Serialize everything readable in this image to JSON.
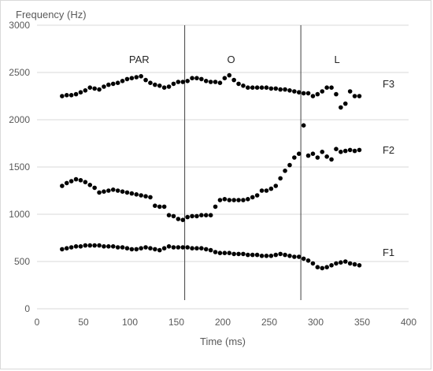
{
  "chart_data": {
    "type": "scatter",
    "xlabel": "Time (ms)",
    "ylabel": "Frequency (Hz)",
    "xlim": [
      0,
      400
    ],
    "ylim": [
      0,
      3000
    ],
    "x_ticks": [
      0,
      50,
      100,
      150,
      200,
      250,
      300,
      350,
      400
    ],
    "y_ticks": [
      0,
      500,
      1000,
      1500,
      2000,
      2500,
      3000
    ],
    "grid": "horizontal",
    "marker_color": "#000000",
    "gridline_color": "#d9d9d9",
    "boundaries": [
      159,
      284
    ],
    "segments": [
      {
        "label": "PAR",
        "x": 110
      },
      {
        "label": "O",
        "x": 209
      },
      {
        "label": "L",
        "x": 323
      }
    ],
    "series": [
      {
        "name": "F3",
        "label_pos": {
          "x": 372,
          "y": 2340
        },
        "x": [
          27,
          32,
          37,
          42,
          47,
          52,
          57,
          62,
          67,
          72,
          77,
          82,
          87,
          92,
          97,
          102,
          107,
          112,
          117,
          122,
          127,
          132,
          137,
          142,
          147,
          152,
          157,
          162,
          167,
          172,
          177,
          182,
          187,
          192,
          197,
          202,
          207,
          212,
          217,
          222,
          227,
          232,
          237,
          242,
          247,
          252,
          257,
          262,
          267,
          272,
          277,
          282,
          287,
          292,
          297,
          302,
          307,
          312,
          317,
          322,
          327,
          332,
          337,
          342,
          347
        ],
        "y": [
          2250,
          2260,
          2260,
          2270,
          2290,
          2310,
          2340,
          2330,
          2320,
          2350,
          2370,
          2380,
          2390,
          2410,
          2430,
          2440,
          2450,
          2460,
          2420,
          2390,
          2370,
          2360,
          2340,
          2350,
          2380,
          2400,
          2400,
          2410,
          2440,
          2440,
          2430,
          2410,
          2400,
          2400,
          2390,
          2440,
          2470,
          2420,
          2380,
          2360,
          2340,
          2340,
          2340,
          2340,
          2340,
          2330,
          2330,
          2320,
          2320,
          2310,
          2300,
          2290,
          2280,
          2280,
          2250,
          2270,
          2300,
          2340,
          2340,
          2270,
          2130,
          2170,
          2300,
          2250,
          2250
        ]
      },
      {
        "name": "F2",
        "label_pos": {
          "x": 372,
          "y": 1640
        },
        "x": [
          27,
          32,
          37,
          42,
          47,
          52,
          57,
          62,
          67,
          72,
          77,
          82,
          87,
          92,
          97,
          102,
          107,
          112,
          117,
          122,
          127,
          132,
          137,
          142,
          147,
          152,
          157,
          162,
          167,
          172,
          177,
          182,
          187,
          192,
          197,
          202,
          207,
          212,
          217,
          222,
          227,
          232,
          237,
          242,
          247,
          252,
          257,
          262,
          267,
          272,
          277,
          282,
          287,
          292,
          297,
          302,
          307,
          312,
          317,
          322,
          327,
          332,
          337,
          342,
          347
        ],
        "y": [
          1300,
          1330,
          1350,
          1370,
          1360,
          1340,
          1310,
          1280,
          1230,
          1240,
          1250,
          1260,
          1250,
          1240,
          1230,
          1220,
          1210,
          1200,
          1190,
          1180,
          1090,
          1080,
          1080,
          990,
          980,
          950,
          940,
          970,
          980,
          980,
          990,
          990,
          990,
          1080,
          1150,
          1160,
          1150,
          1150,
          1150,
          1150,
          1160,
          1180,
          1200,
          1250,
          1250,
          1270,
          1300,
          1380,
          1460,
          1520,
          1600,
          1640,
          1940,
          1620,
          1640,
          1600,
          1660,
          1610,
          1580,
          1690,
          1660,
          1670,
          1680,
          1670,
          1680
        ]
      },
      {
        "name": "F1",
        "label_pos": {
          "x": 372,
          "y": 560
        },
        "x": [
          27,
          32,
          37,
          42,
          47,
          52,
          57,
          62,
          67,
          72,
          77,
          82,
          87,
          92,
          97,
          102,
          107,
          112,
          117,
          122,
          127,
          132,
          137,
          142,
          147,
          152,
          157,
          162,
          167,
          172,
          177,
          182,
          187,
          192,
          197,
          202,
          207,
          212,
          217,
          222,
          227,
          232,
          237,
          242,
          247,
          252,
          257,
          262,
          267,
          272,
          277,
          282,
          287,
          292,
          297,
          302,
          307,
          312,
          317,
          322,
          327,
          332,
          337,
          342,
          347
        ],
        "y": [
          630,
          640,
          650,
          660,
          660,
          670,
          670,
          670,
          670,
          660,
          660,
          660,
          650,
          650,
          640,
          630,
          630,
          640,
          650,
          640,
          630,
          620,
          640,
          660,
          650,
          650,
          650,
          650,
          640,
          640,
          640,
          630,
          620,
          600,
          590,
          590,
          590,
          580,
          580,
          580,
          570,
          570,
          570,
          560,
          560,
          560,
          570,
          580,
          570,
          560,
          550,
          550,
          530,
          510,
          480,
          440,
          430,
          440,
          460,
          480,
          490,
          500,
          480,
          470,
          460
        ]
      }
    ]
  }
}
